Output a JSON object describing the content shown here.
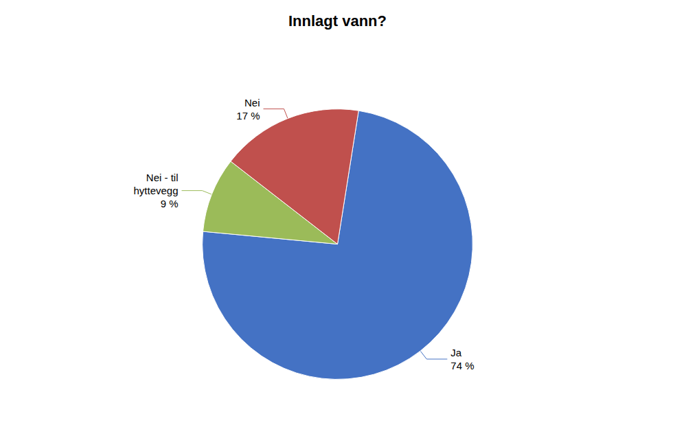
{
  "chart_data": {
    "type": "pie",
    "title": "Innlagt vann?",
    "values": [
      74,
      9,
      17
    ],
    "value_labels": [
      "Ja\n74 %",
      "Nei - til\nhyttevegg\n9 %",
      "Nei\n17 %"
    ],
    "colors": [
      "#4472C4",
      "#9BBB59",
      "#C0504D"
    ],
    "data_labels": true
  }
}
